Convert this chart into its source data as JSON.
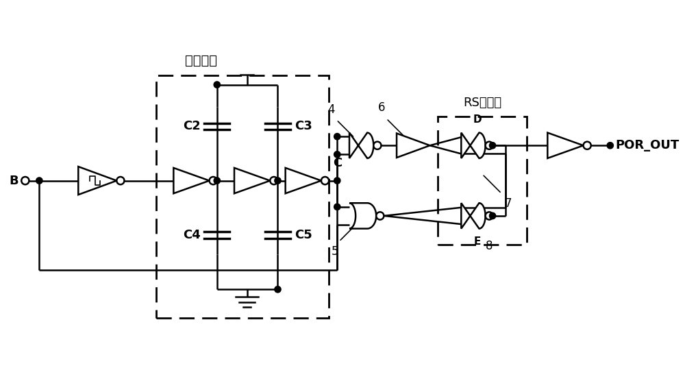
{
  "bg_color": "#ffffff",
  "line_color": "#000000",
  "fig_width": 10.0,
  "fig_height": 5.72,
  "dpi": 100,
  "label_yanshi": "延时电路",
  "label_rs": "RS触发器",
  "label_B": "B",
  "label_C": "C",
  "label_C2": "C2",
  "label_C3": "C3",
  "label_C4": "C4",
  "label_C5": "C5",
  "label_POR_OUT": "POR_OUT",
  "label_D": "D",
  "label_E": "E",
  "num_4": "4",
  "num_5": "5",
  "num_6": "6",
  "num_7": "7",
  "num_8": "8"
}
